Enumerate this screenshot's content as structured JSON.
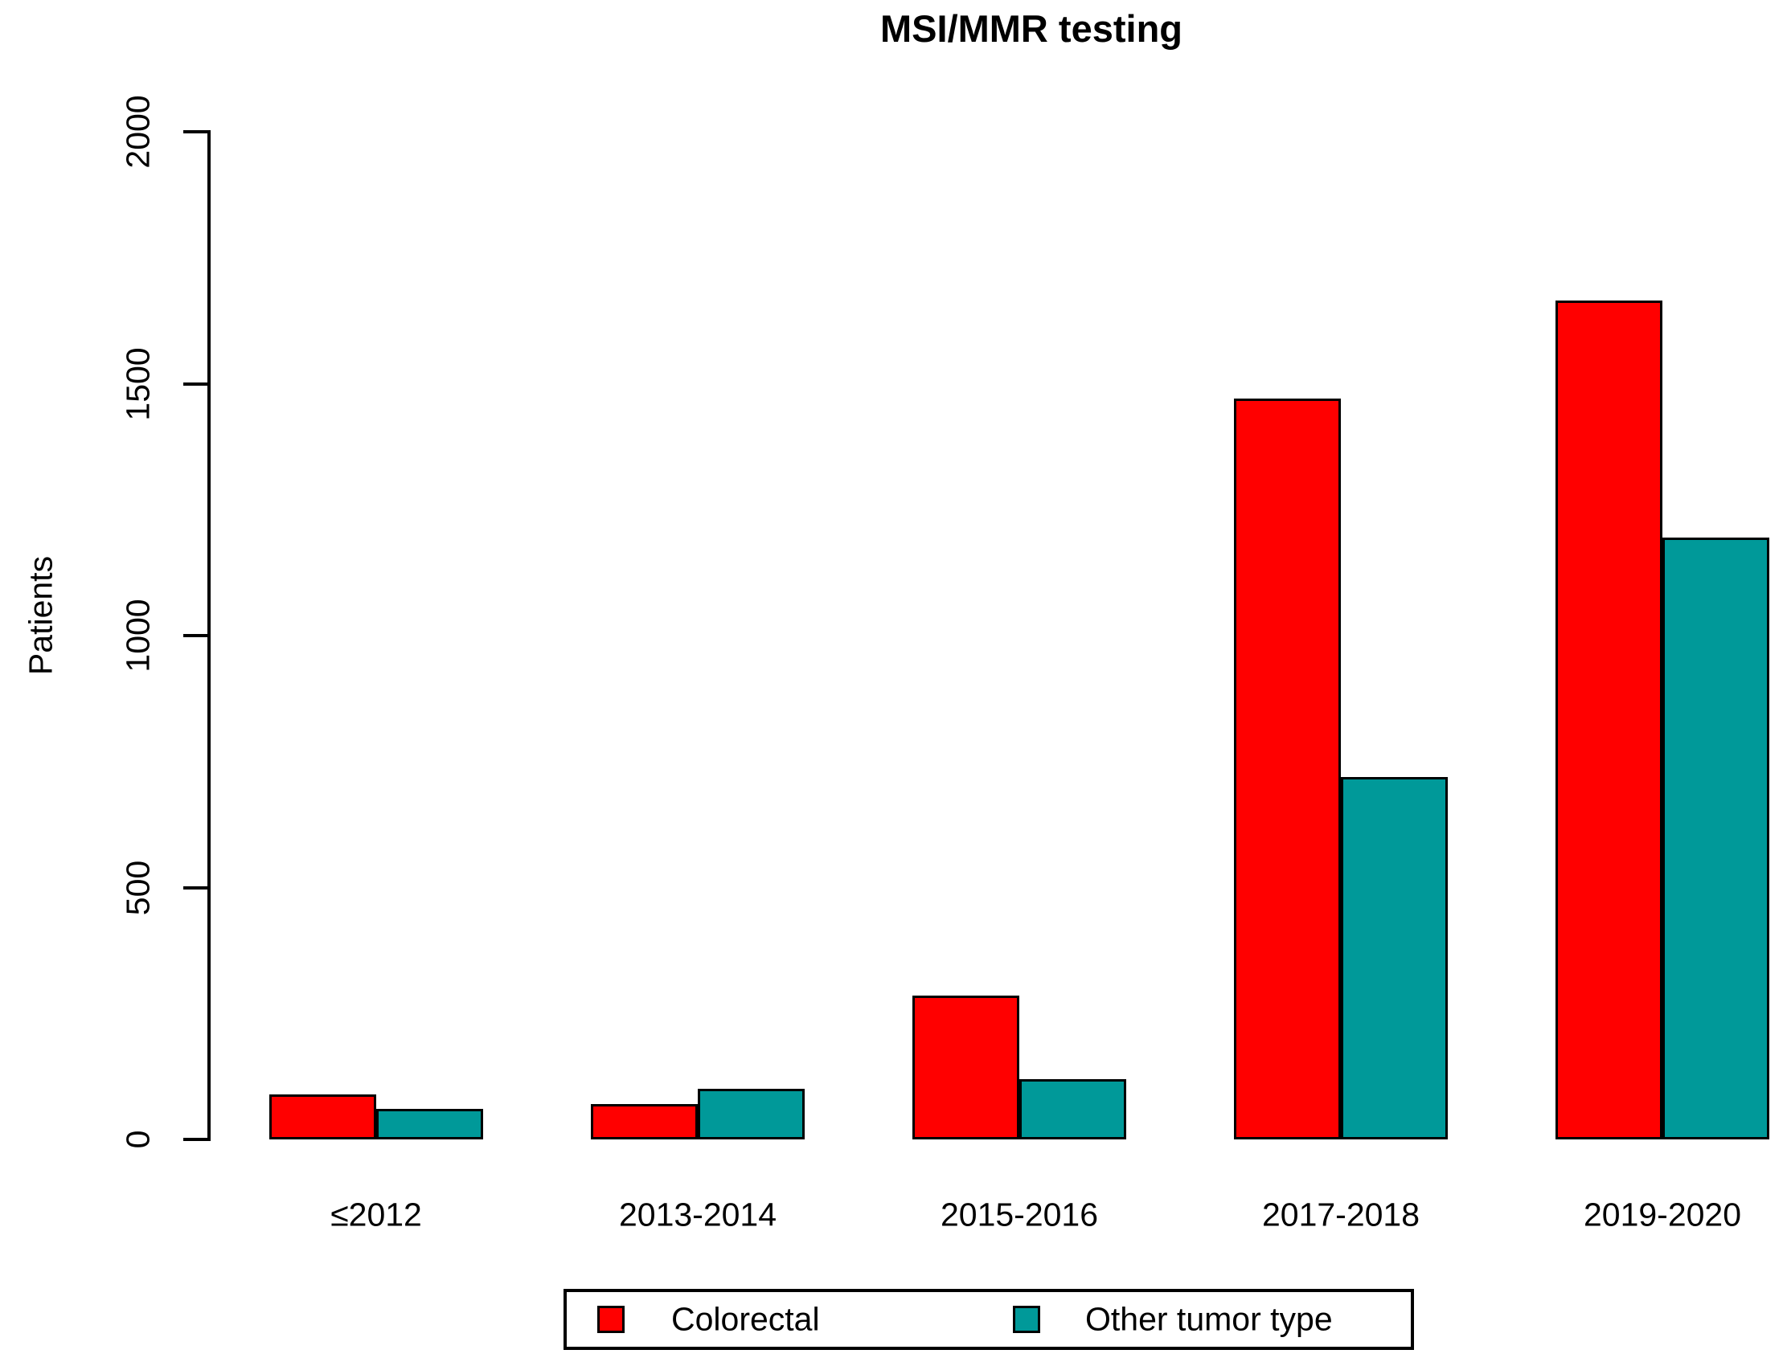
{
  "chart_data": {
    "type": "bar",
    "title": "MSI/MMR testing",
    "xlabel": "",
    "ylabel": "Patients",
    "categories": [
      "≤2012",
      "2013-2014",
      "2015-2016",
      "2017-2018",
      "2019-2020"
    ],
    "series": [
      {
        "name": "Colorectal",
        "color": "#FF0000",
        "values": [
          90,
          70,
          285,
          1470,
          1665
        ]
      },
      {
        "name": "Other tumor type",
        "color": "#009999",
        "values": [
          60,
          100,
          120,
          720,
          1195
        ]
      }
    ],
    "ylim": [
      0,
      2000
    ],
    "yticks": [
      0,
      500,
      1000,
      1500,
      2000
    ],
    "grid": false,
    "legend_position": "bottom-center",
    "bar_border_color": "#000000",
    "axis_color": "#000000"
  }
}
